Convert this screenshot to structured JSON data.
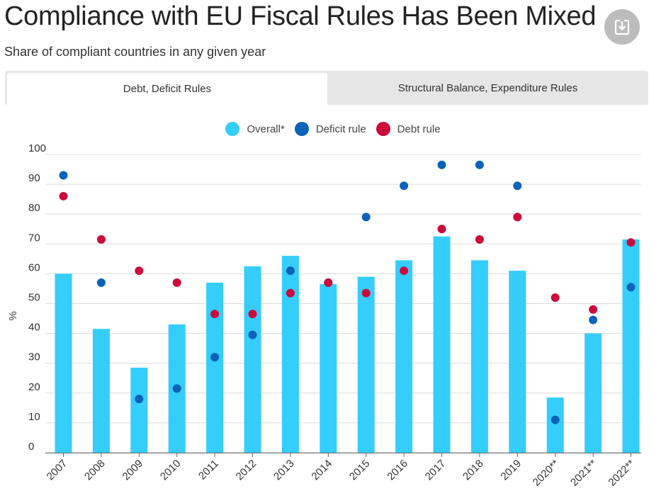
{
  "header": {
    "title": "Compliance with EU Fiscal Rules Has Been Mixed",
    "subtitle": "Share of compliant countries in any given year"
  },
  "tabs": [
    {
      "label": "Debt, Deficit Rules",
      "active": true
    },
    {
      "label": "Structural Balance, Expenditure Rules",
      "active": false
    }
  ],
  "colors": {
    "overall": "#35cdfb",
    "deficit": "#0a63b8",
    "debt": "#cc0a3c",
    "grid": "#dcdcdc"
  },
  "chart_data": {
    "type": "bar",
    "title": "Compliance with EU Fiscal Rules Has Been Mixed",
    "subtitle": "Share of compliant countries in any given year",
    "ylabel": "%",
    "xlabel": "",
    "ylim": [
      0,
      100
    ],
    "yticks": [
      0,
      10,
      20,
      30,
      40,
      50,
      60,
      70,
      80,
      90,
      100
    ],
    "legend": [
      "Overall*",
      "Deficit rule",
      "Debt rule"
    ],
    "categories": [
      "2007",
      "2008",
      "2009",
      "2010",
      "2011",
      "2012",
      "2013",
      "2014",
      "2015",
      "2016",
      "2017",
      "2018",
      "2019",
      "2020**",
      "2021**",
      "2022**"
    ],
    "series": [
      {
        "name": "Overall*",
        "type": "bar",
        "values": [
          60,
          41.5,
          28.5,
          43,
          57,
          62.5,
          66,
          56.5,
          59,
          64.5,
          72.5,
          64.5,
          61,
          18.5,
          40,
          71.5
        ]
      },
      {
        "name": "Deficit rule",
        "type": "scatter",
        "values": [
          93,
          57,
          18,
          21.5,
          32,
          39.5,
          61,
          57,
          79,
          89.5,
          96.5,
          96.5,
          89.5,
          11,
          44.5,
          55.5
        ]
      },
      {
        "name": "Debt rule",
        "type": "scatter",
        "values": [
          86,
          71.5,
          61,
          57,
          46.5,
          46.5,
          53.5,
          57,
          53.5,
          61,
          75,
          71.5,
          79,
          52,
          48,
          70.5
        ]
      }
    ]
  }
}
